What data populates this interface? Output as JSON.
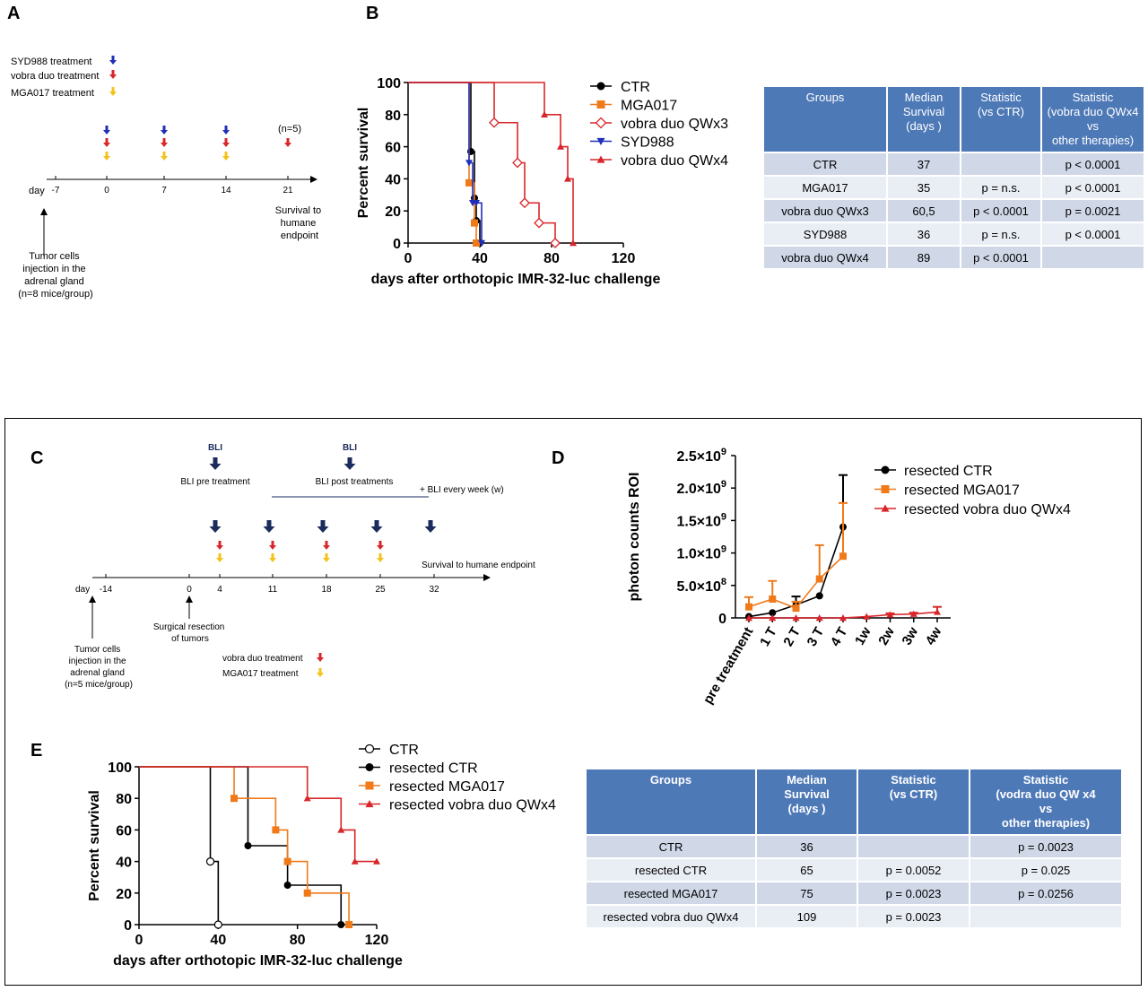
{
  "panels": {
    "a": {
      "letter": "A",
      "legend": [
        "SYD988 treatment",
        "vobra duo treatment",
        "MGA017 treatment"
      ],
      "colors": {
        "blue": "#1f2fb8",
        "red": "#d8262a",
        "yellow": "#f4c21b"
      },
      "timeline": {
        "day_label": "day",
        "ticks": [
          "-7",
          "0",
          "7",
          "14",
          "21"
        ]
      },
      "n_label": "(n=5)",
      "survival_note": [
        "Survival to",
        "humane",
        "endpoint"
      ],
      "injection_note": [
        "Tumor cells",
        "injection in the",
        "adrenal gland",
        "(n=8 mice/group)"
      ]
    },
    "b": {
      "letter": "B"
    },
    "c": {
      "letter": "C",
      "bli_label": "BLI",
      "bli_pre": "BLI pre treatment",
      "bli_post": "BLI post treatments",
      "bli_weekly": "+ BLI every week (w)",
      "survival_note": "Survival to humane endpoint",
      "timeline": {
        "day_label": "day",
        "ticks": [
          "-14",
          "0",
          "4",
          "11",
          "18",
          "25",
          "32"
        ]
      },
      "resection_note": [
        "Surgical resection",
        "of tumors"
      ],
      "injection_note": [
        "Tumor cells",
        "injection in the",
        "adrenal gland",
        "(n=5 mice/group)"
      ],
      "legend": [
        "vobra duo treatment",
        "MGA017 treatment"
      ],
      "colors": {
        "navy": "#1a2b5c",
        "red": "#d8262a",
        "yellow": "#f4c21b"
      }
    },
    "d": {
      "letter": "D"
    },
    "e": {
      "letter": "E"
    }
  },
  "table_b": {
    "headers": [
      [
        "Groups"
      ],
      [
        "Median",
        "Survival",
        "(days )"
      ],
      [
        "Statistic",
        "(vs CTR)"
      ],
      [
        "Statistic",
        "(vobra  duo QWx4",
        "vs",
        "other therapies)"
      ]
    ],
    "rows": [
      [
        "CTR",
        "37",
        "",
        "p < 0.0001"
      ],
      [
        "MGA017",
        "35",
        "p = n.s.",
        "p < 0.0001"
      ],
      [
        "vobra duo QWx3",
        "60,5",
        "p < 0.0001",
        "p = 0.0021"
      ],
      [
        "SYD988",
        "36",
        "p = n.s.",
        "p < 0.0001"
      ],
      [
        "vobra duo QWx4",
        "89",
        "p < 0.0001",
        ""
      ]
    ]
  },
  "table_e": {
    "headers": [
      [
        "Groups"
      ],
      [
        "Median",
        "Survival",
        "(days )"
      ],
      [
        "Statistic",
        "(vs CTR)"
      ],
      [
        "Statistic",
        "(vodra  duo QW x4",
        "vs",
        "other therapies)"
      ]
    ],
    "rows": [
      [
        "CTR",
        "36",
        "",
        "p = 0.0023"
      ],
      [
        "resected CTR",
        "65",
        "p = 0.0052",
        "p = 0.025"
      ],
      [
        "resected MGA017",
        "75",
        "p = 0.0023",
        "p = 0.0256"
      ],
      [
        "resected vobra duo QWx4",
        "109",
        "p = 0.0023",
        ""
      ]
    ]
  },
  "chart_data": [
    {
      "id": "B",
      "type": "line",
      "subtype": "kaplan-meier",
      "xlabel": "days after orthotopic IMR-32-luc challenge",
      "ylabel": "Percent survival",
      "xlim": [
        0,
        120
      ],
      "ylim": [
        0,
        100
      ],
      "xticks": [
        0,
        40,
        80,
        120
      ],
      "yticks": [
        0,
        20,
        40,
        60,
        80,
        100
      ],
      "legend_position": "right",
      "series": [
        {
          "name": "CTR",
          "color": "#000000",
          "marker": "circle",
          "x": [
            0,
            35,
            37,
            38,
            40
          ],
          "y": [
            100,
            57,
            28,
            14,
            0
          ]
        },
        {
          "name": "MGA017",
          "color": "#f07a1a",
          "marker": "square",
          "x": [
            0,
            34,
            37,
            38
          ],
          "y": [
            100,
            37.5,
            12.5,
            0
          ]
        },
        {
          "name": "vobra duo QWx3",
          "color": "#d8262a",
          "marker": "diamond-open",
          "x": [
            0,
            48,
            61,
            65,
            73,
            82
          ],
          "y": [
            100,
            75,
            50,
            25,
            12.5,
            0
          ]
        },
        {
          "name": "SYD988",
          "color": "#1f2fb8",
          "marker": "triangle-down",
          "x": [
            0,
            34,
            36,
            38,
            41
          ],
          "y": [
            100,
            50,
            25,
            25,
            0
          ]
        },
        {
          "name": "vobra duo QWx4",
          "color": "#d8262a",
          "marker": "triangle",
          "x": [
            0,
            76,
            85,
            89,
            92
          ],
          "y": [
            100,
            80,
            60,
            40,
            0
          ]
        }
      ]
    },
    {
      "id": "D",
      "type": "line",
      "xlabel": "",
      "ylabel": "photon counts ROI",
      "categories": [
        "pre treatment",
        "1 T",
        "2 T",
        "3 T",
        "4 T",
        "1w",
        "2w",
        "3w",
        "4w"
      ],
      "ylim": [
        0,
        2500000000
      ],
      "yticks": [
        {
          "value": 0,
          "label_base": "0",
          "label_exp": ""
        },
        {
          "value": 500000000,
          "label_base": "5.0×10",
          "label_exp": "8"
        },
        {
          "value": 1000000000,
          "label_base": "1.0×10",
          "label_exp": "9"
        },
        {
          "value": 1500000000,
          "label_base": "1.5×10",
          "label_exp": "9"
        },
        {
          "value": 2000000000,
          "label_base": "2.0×10",
          "label_exp": "9"
        },
        {
          "value": 2500000000,
          "label_base": "2.5×10",
          "label_exp": "9"
        }
      ],
      "legend_position": "top-right",
      "series": [
        {
          "name": "resected CTR",
          "color": "#000000",
          "marker": "circle",
          "values": [
            20000000,
            80000000,
            200000000,
            340000000,
            1400000000,
            null,
            null,
            null,
            null
          ],
          "errors": [
            0,
            0,
            130000000,
            0,
            800000000,
            null,
            null,
            null,
            null
          ]
        },
        {
          "name": "resected MGA017",
          "color": "#f07a1a",
          "marker": "square",
          "values": [
            170000000,
            290000000,
            150000000,
            600000000,
            950000000,
            null,
            null,
            null,
            null
          ],
          "errors": [
            150000000,
            280000000,
            100000000,
            520000000,
            820000000,
            null,
            null,
            null,
            null
          ]
        },
        {
          "name": "resected vobra duo QWx4",
          "color": "#d8262a",
          "marker": "triangle",
          "values": [
            0,
            0,
            0,
            0,
            0,
            20000000,
            50000000,
            60000000,
            90000000
          ],
          "errors": [
            0,
            0,
            0,
            0,
            0,
            0,
            20000000,
            20000000,
            80000000
          ]
        }
      ]
    },
    {
      "id": "E",
      "type": "line",
      "subtype": "kaplan-meier",
      "xlabel": "days after orthotopic IMR-32-luc challenge",
      "ylabel": "Percent survival",
      "xlim": [
        0,
        120
      ],
      "ylim": [
        0,
        100
      ],
      "xticks": [
        0,
        40,
        80,
        120
      ],
      "yticks": [
        0,
        20,
        40,
        60,
        80,
        100
      ],
      "legend_position": "top-right",
      "series": [
        {
          "name": "CTR",
          "color": "#000000",
          "marker": "circle-open",
          "x": [
            0,
            36,
            40
          ],
          "y": [
            100,
            40,
            0
          ]
        },
        {
          "name": "resected CTR",
          "color": "#000000",
          "marker": "circle",
          "x": [
            0,
            55,
            75,
            102
          ],
          "y": [
            100,
            50,
            25,
            0
          ]
        },
        {
          "name": "resected MGA017",
          "color": "#f07a1a",
          "marker": "square",
          "x": [
            0,
            48,
            69,
            75,
            85,
            106
          ],
          "y": [
            100,
            80,
            60,
            40,
            20,
            0
          ]
        },
        {
          "name": "resected vobra duo QWx4",
          "color": "#d8262a",
          "marker": "triangle",
          "x": [
            0,
            85,
            102,
            109,
            120
          ],
          "y": [
            100,
            80,
            60,
            40,
            40
          ]
        }
      ]
    }
  ]
}
